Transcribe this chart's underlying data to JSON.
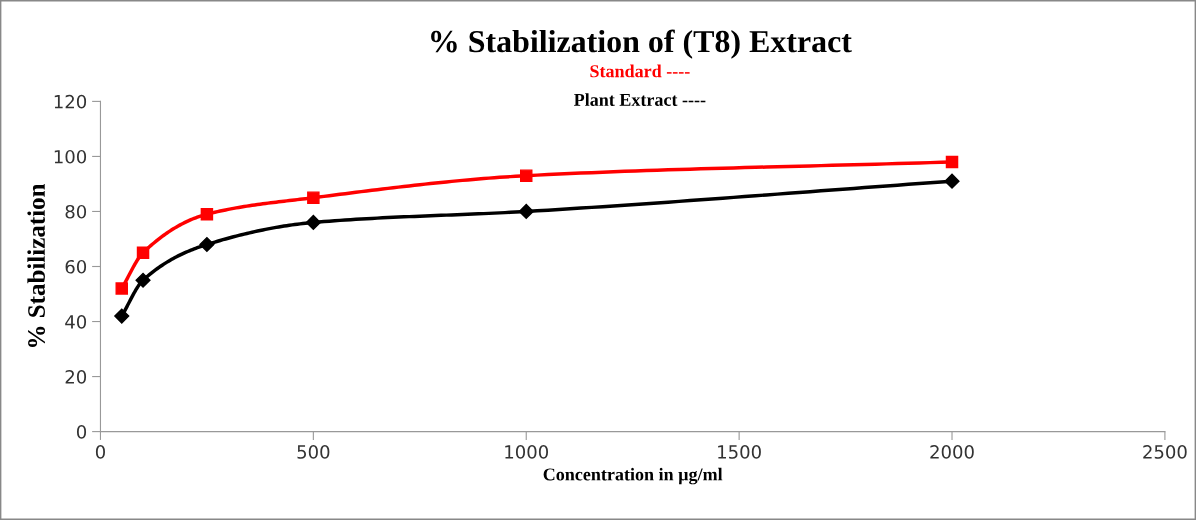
{
  "chart_data": {
    "type": "line",
    "title": "% Stabilization of (T8) Extract",
    "xlabel": "Concentration in µg/ml",
    "ylabel": "% Stabilization",
    "x": [
      50,
      100,
      250,
      500,
      1000,
      2000
    ],
    "series": [
      {
        "name": "Standard ----",
        "color": "#ff0000",
        "marker": "square",
        "values": [
          52,
          65,
          79,
          85,
          93,
          98
        ]
      },
      {
        "name": "Plant Extract ----",
        "color": "#000000",
        "marker": "diamond",
        "values": [
          42,
          55,
          68,
          76,
          80,
          91
        ]
      }
    ],
    "xlim": [
      0,
      2500
    ],
    "xticks": [
      0,
      500,
      1000,
      1500,
      2000,
      2500
    ],
    "ylim": [
      0,
      120
    ],
    "yticks": [
      0,
      20,
      40,
      60,
      80,
      100,
      120
    ],
    "grid": false,
    "legend": "top",
    "line_style": "solid"
  }
}
